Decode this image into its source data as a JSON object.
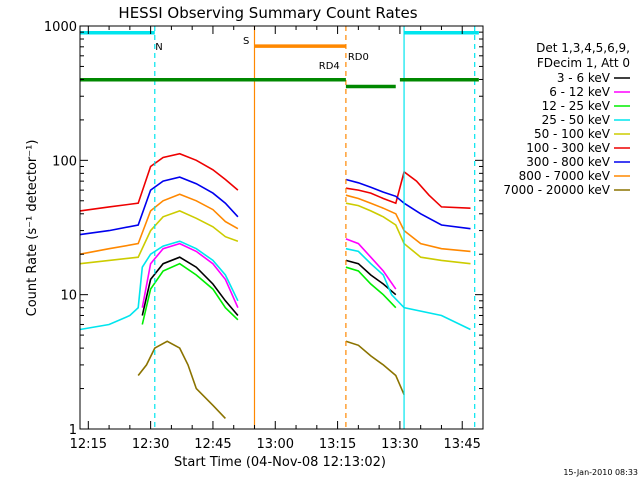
{
  "chart_data": {
    "type": "line",
    "title": "HESSI Observing Summary Count Rates",
    "xlabel": "Start Time (04-Nov-08 12:13:02)",
    "ylabel": "Count Rate (s⁻¹ detector⁻¹)",
    "y_scale": "log",
    "ylim": [
      1,
      1000
    ],
    "xlim": [
      "12:13",
      "13:50"
    ],
    "x_ticks": [
      "12:15",
      "12:30",
      "12:45",
      "13:00",
      "13:15",
      "13:30",
      "13:45"
    ],
    "y_ticks": [
      {
        "value": 1,
        "label": "1"
      },
      {
        "value": 10,
        "label": "10"
      },
      {
        "value": 100,
        "label": "100"
      },
      {
        "value": 1000,
        "label": "1000"
      }
    ],
    "legend_header": [
      "Det 1,3,4,5,6,9,",
      "FDecim 1, Att 0"
    ],
    "legend_position": "right",
    "series": [
      {
        "name": "3 - 6 keV",
        "color": "#000000",
        "points": [
          [
            "12:28",
            7
          ],
          [
            "12:30",
            13
          ],
          [
            "12:33",
            17
          ],
          [
            "12:37",
            19
          ],
          [
            "12:41",
            16
          ],
          [
            "12:45",
            12
          ],
          [
            "12:48",
            9
          ],
          [
            "12:51",
            7
          ],
          null,
          [
            "13:17",
            18
          ],
          [
            "13:20",
            17
          ],
          [
            "13:23",
            14
          ],
          [
            "13:26",
            12
          ],
          [
            "13:29",
            10
          ]
        ]
      },
      {
        "name": "6 - 12 keV",
        "color": "#ff00ff",
        "points": [
          [
            "12:28",
            8
          ],
          [
            "12:30",
            17
          ],
          [
            "12:33",
            22
          ],
          [
            "12:37",
            24
          ],
          [
            "12:41",
            21
          ],
          [
            "12:45",
            17
          ],
          [
            "12:48",
            13
          ],
          [
            "12:51",
            8
          ],
          null,
          [
            "13:17",
            26
          ],
          [
            "13:20",
            24
          ],
          [
            "13:23",
            19
          ],
          [
            "13:26",
            15
          ],
          [
            "13:29",
            11
          ]
        ]
      },
      {
        "name": "12 - 25 keV",
        "color": "#00ee00",
        "points": [
          [
            "12:28",
            6
          ],
          [
            "12:30",
            11
          ],
          [
            "12:33",
            15
          ],
          [
            "12:37",
            17
          ],
          [
            "12:41",
            14
          ],
          [
            "12:45",
            11
          ],
          [
            "12:48",
            8
          ],
          [
            "12:51",
            6.5
          ],
          null,
          [
            "13:17",
            16
          ],
          [
            "13:20",
            15
          ],
          [
            "13:23",
            12
          ],
          [
            "13:26",
            10
          ],
          [
            "13:29",
            8
          ]
        ]
      },
      {
        "name": "25 - 50 keV",
        "color": "#00e5ee",
        "points": [
          [
            "12:13",
            5.5
          ],
          [
            "12:20",
            6
          ],
          [
            "12:25",
            7
          ],
          [
            "12:27",
            8
          ],
          [
            "12:28",
            16
          ],
          [
            "12:30",
            20
          ],
          [
            "12:33",
            23
          ],
          [
            "12:37",
            25
          ],
          [
            "12:41",
            22
          ],
          [
            "12:45",
            18
          ],
          [
            "12:48",
            14
          ],
          [
            "12:51",
            9
          ],
          null,
          [
            "13:17",
            22
          ],
          [
            "13:20",
            21
          ],
          [
            "13:23",
            17
          ],
          [
            "13:26",
            14
          ],
          [
            "13:28",
            10
          ],
          [
            "13:31",
            8
          ],
          [
            "13:40",
            7
          ],
          [
            "13:47",
            5.5
          ]
        ]
      },
      {
        "name": "50 - 100 keV",
        "color": "#cccc00",
        "points": [
          [
            "12:13",
            17
          ],
          [
            "12:20",
            18
          ],
          [
            "12:27",
            19
          ],
          [
            "12:30",
            30
          ],
          [
            "12:33",
            38
          ],
          [
            "12:37",
            42
          ],
          [
            "12:41",
            37
          ],
          [
            "12:45",
            32
          ],
          [
            "12:48",
            27
          ],
          [
            "12:51",
            25
          ],
          null,
          [
            "13:17",
            48
          ],
          [
            "13:20",
            46
          ],
          [
            "13:23",
            42
          ],
          [
            "13:26",
            38
          ],
          [
            "13:29",
            33
          ],
          [
            "13:31",
            24
          ],
          [
            "13:35",
            19
          ],
          [
            "13:40",
            18
          ],
          [
            "13:47",
            17
          ]
        ]
      },
      {
        "name": "100 - 300 keV",
        "color": "#ee0000",
        "points": [
          [
            "12:13",
            42
          ],
          [
            "12:20",
            45
          ],
          [
            "12:27",
            48
          ],
          [
            "12:30",
            90
          ],
          [
            "12:33",
            105
          ],
          [
            "12:37",
            112
          ],
          [
            "12:41",
            100
          ],
          [
            "12:45",
            85
          ],
          [
            "12:48",
            72
          ],
          [
            "12:51",
            60
          ],
          null,
          [
            "13:17",
            62
          ],
          [
            "13:20",
            60
          ],
          [
            "13:23",
            57
          ],
          [
            "13:26",
            52
          ],
          [
            "13:29",
            48
          ],
          [
            "13:31",
            82
          ],
          [
            "13:34",
            70
          ],
          [
            "13:37",
            55
          ],
          [
            "13:40",
            45
          ],
          [
            "13:47",
            44
          ]
        ]
      },
      {
        "name": "300 - 800 keV",
        "color": "#0000ee",
        "points": [
          [
            "12:13",
            28
          ],
          [
            "12:20",
            30
          ],
          [
            "12:27",
            33
          ],
          [
            "12:30",
            60
          ],
          [
            "12:33",
            70
          ],
          [
            "12:37",
            75
          ],
          [
            "12:41",
            67
          ],
          [
            "12:45",
            57
          ],
          [
            "12:48",
            48
          ],
          [
            "12:51",
            38
          ],
          null,
          [
            "13:17",
            72
          ],
          [
            "13:20",
            68
          ],
          [
            "13:23",
            63
          ],
          [
            "13:26",
            58
          ],
          [
            "13:29",
            54
          ],
          [
            "13:31",
            48
          ],
          [
            "13:35",
            40
          ],
          [
            "13:40",
            33
          ],
          [
            "13:47",
            31
          ]
        ]
      },
      {
        "name": "800 - 7000 keV",
        "color": "#ff8800",
        "points": [
          [
            "12:13",
            20
          ],
          [
            "12:20",
            22
          ],
          [
            "12:27",
            24
          ],
          [
            "12:30",
            42
          ],
          [
            "12:33",
            50
          ],
          [
            "12:37",
            56
          ],
          [
            "12:41",
            50
          ],
          [
            "12:45",
            43
          ],
          [
            "12:48",
            35
          ],
          [
            "12:51",
            31
          ],
          null,
          [
            "13:17",
            55
          ],
          [
            "13:20",
            52
          ],
          [
            "13:23",
            48
          ],
          [
            "13:26",
            44
          ],
          [
            "13:29",
            40
          ],
          [
            "13:31",
            30
          ],
          [
            "13:35",
            24
          ],
          [
            "13:40",
            22
          ],
          [
            "13:47",
            21
          ]
        ]
      },
      {
        "name": "7000 - 20000 keV",
        "color": "#8b7300",
        "points": [
          [
            "12:27",
            2.5
          ],
          [
            "12:29",
            3
          ],
          [
            "12:31",
            4
          ],
          [
            "12:34",
            4.5
          ],
          [
            "12:37",
            4
          ],
          [
            "12:39",
            3
          ],
          [
            "12:41",
            2
          ],
          [
            "12:45",
            1.5
          ],
          [
            "12:48",
            1.2
          ],
          null,
          [
            "13:17",
            4.5
          ],
          [
            "13:20",
            4.2
          ],
          [
            "13:23",
            3.5
          ],
          [
            "13:26",
            3
          ],
          [
            "13:29",
            2.5
          ],
          [
            "13:31",
            1.8
          ]
        ]
      }
    ],
    "bars": [
      {
        "label": "N",
        "color": "#00e5ee",
        "segments": [
          [
            1.8,
            "12:13",
            "12:31"
          ],
          [
            1.8,
            "13:31",
            "13:49"
          ]
        ]
      },
      {
        "label": "S",
        "color": "#ff8800",
        "segments": [
          [
            1.7,
            "12:55",
            "13:17"
          ]
        ]
      },
      {
        "label": "RD0",
        "color": "#008800",
        "segments": [
          [
            1.45,
            "12:13",
            "13:17"
          ],
          [
            1.45,
            "13:30",
            "13:49"
          ]
        ]
      },
      {
        "label": "RD4",
        "color": "#008800",
        "segments": [
          [
            1.4,
            "13:17",
            "13:29"
          ]
        ]
      }
    ],
    "vlines": [
      {
        "x": "12:31",
        "color": "#00e5ee",
        "dashed": true
      },
      {
        "x": "13:31",
        "color": "#00e5ee",
        "dashed": false
      },
      {
        "x": "13:48",
        "color": "#00e5ee",
        "dashed": true
      },
      {
        "x": "12:55",
        "color": "#ff8800",
        "dashed": false
      },
      {
        "x": "13:17",
        "color": "#ff8800",
        "dashed": true
      }
    ],
    "footer": "15-Jan-2010 08:33"
  }
}
